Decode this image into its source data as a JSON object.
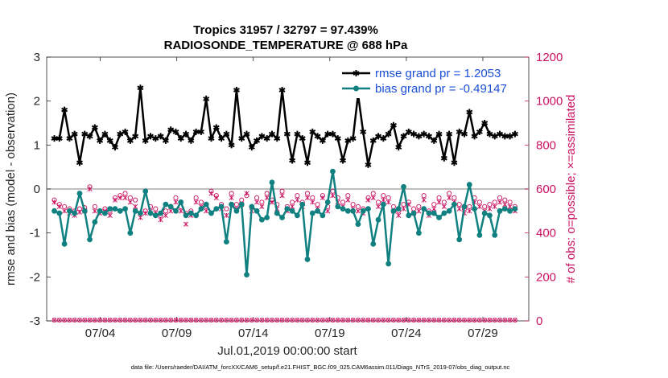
{
  "chart_data": {
    "type": "line",
    "title_line1": "Tropics 31957 / 32797 = 97.439%",
    "title_line2": "RADIOSONDE_TEMPERATURE @ 688 hPa",
    "xlabel": "Jul.01,2019 00:00:00 start",
    "ylabel_left": "rmse and bias (model - observation)",
    "ylabel_right": "# of obs: o=possible; ×=assimilated",
    "x_tick_labels": [
      "07/04",
      "07/09",
      "07/14",
      "07/19",
      "07/24",
      "07/29"
    ],
    "x_tick_days": [
      4,
      9,
      14,
      19,
      24,
      29
    ],
    "xlim": [
      0.5,
      32.0
    ],
    "ylim_left": [
      -3,
      3
    ],
    "ylim_right": [
      0,
      1200
    ],
    "yticks_left": [
      "-3",
      "-2",
      "-1",
      "0",
      "1",
      "2",
      "3"
    ],
    "yticks_left_values": [
      -3,
      -2,
      -1,
      0,
      1,
      2,
      3
    ],
    "yticks_right": [
      "0",
      "200",
      "400",
      "600",
      "800",
      "1000",
      "1200"
    ],
    "yticks_right_values": [
      0,
      200,
      400,
      600,
      800,
      1000,
      1200
    ],
    "zero_line": 0,
    "series": [
      {
        "name": "rmse grand pr = 1.2053",
        "axis": "left",
        "color": "#000000",
        "values": [
          1.15,
          1.15,
          1.8,
          1.15,
          1.25,
          0.6,
          1.25,
          1.2,
          1.4,
          1.1,
          1.25,
          1.1,
          0.95,
          1.25,
          1.3,
          1.1,
          1.2,
          2.3,
          1.1,
          1.2,
          1.15,
          1.2,
          1.1,
          1.35,
          1.3,
          1.15,
          1.25,
          1.1,
          1.3,
          1.3,
          2.05,
          1.15,
          1.4,
          1.15,
          1.25,
          1.0,
          2.25,
          1.15,
          1.25,
          0.95,
          1.1,
          1.2,
          1.15,
          1.25,
          1.15,
          2.25,
          1.25,
          0.65,
          1.25,
          1.15,
          0.6,
          1.3,
          1.2,
          1.1,
          1.25,
          1.25,
          1.15,
          0.65,
          1.1,
          1.15,
          2.15,
          1.3,
          0.55,
          1.1,
          1.2,
          1.15,
          1.25,
          1.45,
          0.95,
          1.2,
          1.3,
          1.25,
          1.2,
          1.25,
          1.2,
          1.1,
          1.25,
          0.7,
          1.25,
          0.6,
          1.3,
          1.25,
          1.75,
          1.2,
          1.3,
          1.5,
          1.25,
          1.2,
          1.25,
          1.2,
          1.2,
          1.25
        ]
      },
      {
        "name": "bias grand pr = -0.49147",
        "axis": "left",
        "color": "#108080",
        "values": [
          -0.5,
          -0.55,
          -1.25,
          -0.5,
          -0.55,
          -0.1,
          -0.5,
          -1.15,
          -0.75,
          -0.5,
          -0.55,
          -0.45,
          -0.45,
          -0.5,
          -0.45,
          -1.0,
          -0.5,
          -0.55,
          -0.05,
          -0.55,
          -0.6,
          -0.55,
          -0.35,
          -0.4,
          -0.5,
          -0.3,
          -0.6,
          -0.55,
          -0.6,
          -0.45,
          -0.35,
          -0.55,
          -0.45,
          -0.4,
          -1.2,
          -0.35,
          -0.5,
          -0.35,
          -1.95,
          -0.4,
          -0.5,
          -0.7,
          -0.65,
          0.15,
          -0.55,
          -0.65,
          -0.45,
          -0.5,
          -0.6,
          -0.35,
          -1.6,
          -0.55,
          -0.5,
          -0.6,
          -0.3,
          0.4,
          -0.4,
          -0.45,
          -0.5,
          -0.5,
          -0.8,
          -0.5,
          -0.45,
          -1.25,
          -0.7,
          -0.35,
          -1.7,
          -0.5,
          -0.45,
          0.05,
          -0.6,
          -0.55,
          -1.0,
          -0.45,
          -0.55,
          -0.55,
          -0.65,
          -0.55,
          -0.5,
          -0.35,
          -1.15,
          -0.4,
          0.1,
          -0.45,
          -1.05,
          -0.55,
          -0.6,
          -1.05,
          -0.5,
          -0.45,
          -0.5,
          -0.45
        ]
      },
      {
        "name": "possible obs",
        "axis": "right",
        "color": "#cc1060",
        "values": [
          550,
          530,
          520,
          510,
          500,
          510,
          515,
          610,
          520,
          500,
          510,
          500,
          560,
          570,
          580,
          560,
          550,
          490,
          500,
          520,
          510,
          480,
          500,
          520,
          560,
          520,
          490,
          500,
          560,
          540,
          520,
          590,
          570,
          530,
          510,
          580,
          530,
          550,
          570,
          520,
          560,
          540,
          580,
          550,
          530,
          590,
          520,
          540,
          570,
          540,
          580,
          560,
          530,
          570,
          520,
          590,
          560,
          540,
          570,
          530,
          520,
          510,
          560,
          580,
          540,
          570,
          560,
          520,
          500,
          530,
          540,
          510,
          520,
          570,
          500,
          530,
          560,
          540,
          580,
          560,
          530,
          510,
          520,
          560,
          540,
          520,
          530,
          540,
          560,
          550,
          540,
          520
        ]
      },
      {
        "name": "assimilated obs",
        "axis": "right",
        "color": "#cc1060",
        "values": [
          540,
          520,
          500,
          490,
          480,
          495,
          500,
          600,
          500,
          490,
          500,
          480,
          550,
          560,
          560,
          540,
          520,
          470,
          490,
          500,
          490,
          460,
          480,
          500,
          540,
          500,
          440,
          480,
          540,
          520,
          500,
          580,
          560,
          510,
          480,
          560,
          510,
          530,
          580,
          500,
          540,
          520,
          560,
          540,
          510,
          570,
          500,
          520,
          550,
          520,
          560,
          540,
          510,
          560,
          500,
          570,
          540,
          520,
          550,
          510,
          500,
          490,
          550,
          560,
          520,
          550,
          540,
          500,
          480,
          510,
          530,
          490,
          500,
          550,
          480,
          510,
          540,
          520,
          560,
          540,
          510,
          490,
          500,
          540,
          520,
          500,
          510,
          520,
          540,
          530,
          520,
          500
        ]
      }
    ],
    "legend": [
      {
        "label": "rmse grand pr = 1.2053",
        "color": "#000000",
        "marker": "star"
      },
      {
        "label": "bias grand pr = -0.49147",
        "color": "#108080",
        "marker": "circle"
      }
    ],
    "legend_position": "top-right",
    "footer": "data file: /Users/raeder/DAI/ATM_forcXX/CAM6_setup/f.e21.FHIST_BGC.f09_025.CAM6assim.011/Diags_NTrS_2019-07/obs_diag_output.nc"
  }
}
